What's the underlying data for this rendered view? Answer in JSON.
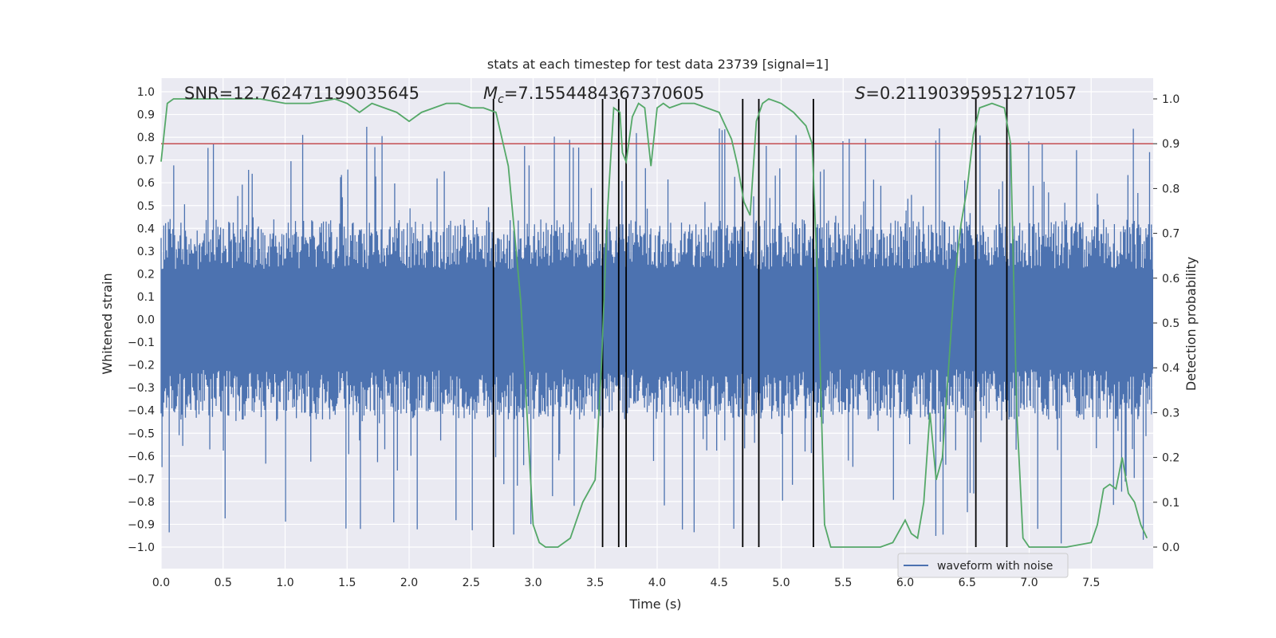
{
  "chart_data": {
    "type": "line",
    "title": "stats at each timestep for test data 23739 [signal=1]",
    "xlabel": "Time (s)",
    "ylabel_left": "Whitened strain",
    "ylabel_right": "Detection probability",
    "xlim": [
      0.0,
      8.0
    ],
    "ylim_left": [
      -1.0,
      1.0
    ],
    "ylim_right": [
      0.0,
      1.0
    ],
    "x_ticks": [
      "0.0",
      "0.5",
      "1.0",
      "1.5",
      "2.0",
      "2.5",
      "3.0",
      "3.5",
      "4.0",
      "4.5",
      "5.0",
      "5.5",
      "6.0",
      "6.5",
      "7.0",
      "7.5"
    ],
    "y_ticks_left": [
      "1.0",
      "0.9",
      "0.8",
      "0.7",
      "0.6",
      "0.5",
      "0.4",
      "0.3",
      "0.2",
      "0.1",
      "0.0",
      "-0.1",
      "-0.2",
      "-0.3",
      "-0.4",
      "-0.5",
      "-0.6",
      "-0.7",
      "-0.8",
      "-0.9",
      "-1.0"
    ],
    "y_ticks_right": [
      "1.0",
      "0.9",
      "0.8",
      "0.7",
      "0.6",
      "0.5",
      "0.4",
      "0.3",
      "0.2",
      "0.1",
      "0.0"
    ],
    "annotations": {
      "snr_label": "SNR=12.762471199035645",
      "mc_symbol": "M",
      "mc_subscript": "c",
      "mc_value": "=7.1554484367370605",
      "s_symbol": "S",
      "s_value": "=0.21190395951271057"
    },
    "legend": {
      "entries": [
        "waveform with noise"
      ],
      "placement": "lower-right"
    },
    "grid": true,
    "threshold": {
      "value": 0.9,
      "axis": "right"
    },
    "event_markers_s": [
      2.68,
      3.56,
      3.69,
      3.75,
      4.69,
      4.82,
      5.26,
      6.57,
      6.82
    ],
    "series": [
      {
        "name": "waveform with noise",
        "axis": "left",
        "style": "noise-band",
        "typical_envelope": [
          -0.4,
          0.4
        ],
        "peak_envelope": [
          -1.0,
          0.85
        ]
      },
      {
        "axis": "right",
        "x": [
          0.0,
          0.05,
          0.1,
          0.2,
          0.4,
          0.6,
          0.8,
          1.0,
          1.2,
          1.4,
          1.5,
          1.6,
          1.7,
          1.8,
          1.9,
          2.0,
          2.1,
          2.2,
          2.3,
          2.4,
          2.5,
          2.6,
          2.7,
          2.8,
          2.9,
          3.0,
          3.05,
          3.1,
          3.15,
          3.2,
          3.3,
          3.4,
          3.5,
          3.55,
          3.6,
          3.65,
          3.7,
          3.72,
          3.75,
          3.8,
          3.85,
          3.9,
          3.95,
          4.0,
          4.05,
          4.1,
          4.2,
          4.3,
          4.4,
          4.5,
          4.6,
          4.65,
          4.7,
          4.75,
          4.8,
          4.85,
          4.9,
          5.0,
          5.1,
          5.2,
          5.25,
          5.3,
          5.35,
          5.4,
          5.6,
          5.8,
          5.9,
          6.0,
          6.05,
          6.1,
          6.15,
          6.2,
          6.25,
          6.3,
          6.35,
          6.4,
          6.45,
          6.5,
          6.55,
          6.6,
          6.7,
          6.8,
          6.85,
          6.9,
          6.95,
          7.0,
          7.1,
          7.3,
          7.5,
          7.55,
          7.6,
          7.65,
          7.7,
          7.75,
          7.8,
          7.85,
          7.9,
          7.95
        ],
        "values": [
          0.86,
          0.99,
          1.0,
          1.0,
          1.0,
          1.0,
          1.0,
          0.99,
          0.99,
          1.0,
          0.99,
          0.97,
          0.99,
          0.98,
          0.97,
          0.95,
          0.97,
          0.98,
          0.99,
          0.99,
          0.98,
          0.98,
          0.97,
          0.85,
          0.55,
          0.05,
          0.01,
          0.0,
          0.0,
          0.0,
          0.02,
          0.1,
          0.15,
          0.4,
          0.75,
          0.98,
          0.97,
          0.88,
          0.86,
          0.96,
          0.99,
          0.98,
          0.85,
          0.98,
          0.99,
          0.98,
          0.99,
          0.99,
          0.98,
          0.97,
          0.91,
          0.85,
          0.77,
          0.74,
          0.95,
          0.99,
          1.0,
          0.99,
          0.97,
          0.94,
          0.9,
          0.55,
          0.05,
          0.0,
          0.0,
          0.0,
          0.01,
          0.06,
          0.03,
          0.02,
          0.1,
          0.3,
          0.15,
          0.2,
          0.4,
          0.6,
          0.72,
          0.8,
          0.92,
          0.98,
          0.99,
          0.98,
          0.9,
          0.3,
          0.02,
          0.0,
          0.0,
          0.0,
          0.01,
          0.05,
          0.13,
          0.14,
          0.13,
          0.2,
          0.12,
          0.1,
          0.05,
          0.02
        ]
      }
    ]
  }
}
